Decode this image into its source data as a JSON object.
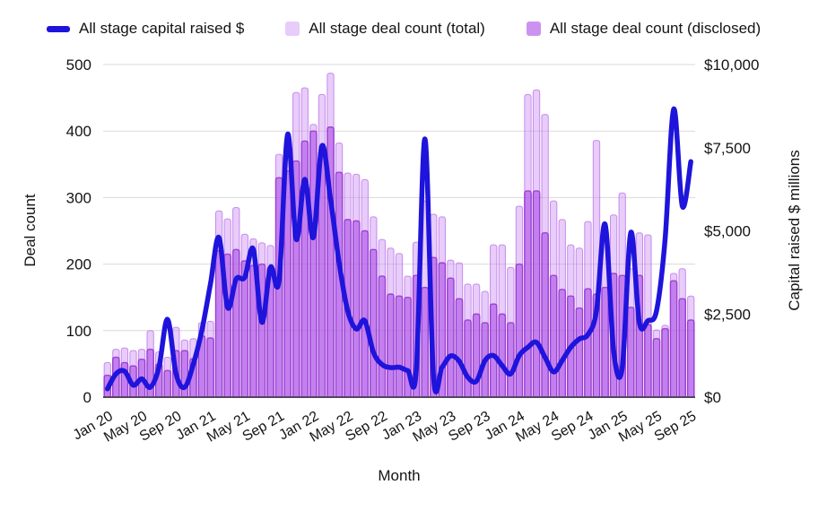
{
  "legend": [
    {
      "label": "All stage capital raised $",
      "type": "line",
      "color": "#1e14db"
    },
    {
      "label": "All stage deal count (total)",
      "type": "bar",
      "color": "#cd8df2"
    },
    {
      "label": "All stage deal count (disclosed)",
      "type": "bar",
      "color": "#ae4fe6"
    }
  ],
  "chart_data": {
    "type": "combo-bar-line",
    "title": "",
    "xlabel": "Month",
    "y_left": {
      "label": "Deal count",
      "min": 0,
      "max": 500,
      "ticks": [
        0,
        100,
        200,
        300,
        400,
        500
      ]
    },
    "y_right": {
      "label": "Capital raised $ millions",
      "min": 0,
      "max": 10000,
      "tick_labels": [
        "$0",
        "$2,500",
        "$5,000",
        "$7,500",
        "$10,000"
      ]
    },
    "x_tick_every": 4,
    "x_tick_rotation": -30,
    "grid": "horizontal",
    "legend_position": "top",
    "months": [
      "Jan 20",
      "Feb 20",
      "Mar 20",
      "Apr 20",
      "May 20",
      "Jun 20",
      "Jul 20",
      "Aug 20",
      "Sep 20",
      "Oct 20",
      "Nov 20",
      "Dec 20",
      "Jan 21",
      "Feb 21",
      "Mar 21",
      "Apr 21",
      "May 21",
      "Jun 21",
      "Jul 21",
      "Aug 21",
      "Sep 21",
      "Oct 21",
      "Nov 21",
      "Dec 21",
      "Jan 22",
      "Feb 22",
      "Mar 22",
      "Apr 22",
      "May 22",
      "Jun 22",
      "Jul 22",
      "Aug 22",
      "Sep 22",
      "Oct 22",
      "Nov 22",
      "Dec 22",
      "Jan 23",
      "Feb 23",
      "Mar 23",
      "Apr 23",
      "May 23",
      "Jun 23",
      "Jul 23",
      "Aug 23",
      "Sep 23",
      "Oct 23",
      "Nov 23",
      "Dec 23",
      "Jan 24",
      "Feb 24",
      "Mar 24",
      "Apr 24",
      "May 24",
      "Jun 24",
      "Jul 24",
      "Aug 24",
      "Sep 24",
      "Oct 24",
      "Nov 24",
      "Dec 24",
      "Jan 25",
      "Feb 25",
      "Mar 25",
      "Apr 25",
      "May 25",
      "Jun 25",
      "Jul 25",
      "Aug 25",
      "Sep 25"
    ],
    "series": [
      {
        "name": "All stage deal count (total)",
        "type": "bar",
        "axis": "left",
        "fill": "#cd8df2",
        "stroke": "#bf7bec",
        "values": [
          52,
          72,
          74,
          70,
          72,
          100,
          68,
          60,
          105,
          86,
          88,
          112,
          114,
          280,
          268,
          285,
          245,
          238,
          232,
          228,
          365,
          378,
          458,
          465,
          410,
          455,
          487,
          382,
          337,
          335,
          327,
          271,
          237,
          224,
          216,
          182,
          233,
          295,
          275,
          271,
          206,
          202,
          170,
          170,
          159,
          229,
          229,
          195,
          287,
          455,
          462,
          425,
          295,
          267,
          229,
          224,
          264,
          386,
          250,
          274,
          307,
          193,
          247,
          244,
          101,
          108,
          186,
          193,
          152
        ]
      },
      {
        "name": "All stage deal count (disclosed)",
        "type": "bar",
        "axis": "left",
        "fill": "#ae4fe6",
        "stroke": "#9233cf",
        "values": [
          33,
          60,
          52,
          47,
          57,
          72,
          50,
          40,
          70,
          70,
          58,
          92,
          89,
          220,
          215,
          222,
          205,
          198,
          200,
          195,
          330,
          340,
          355,
          385,
          400,
          370,
          406,
          338,
          267,
          265,
          250,
          222,
          182,
          155,
          152,
          150,
          183,
          165,
          210,
          202,
          179,
          148,
          116,
          125,
          112,
          140,
          125,
          112,
          200,
          310,
          310,
          247,
          183,
          162,
          152,
          134,
          163,
          155,
          165,
          186,
          183,
          135,
          183,
          109,
          88,
          103,
          175,
          148,
          116
        ]
      },
      {
        "name": "All stage capital raised $",
        "type": "line",
        "axis": "right",
        "stroke": "#1e14db",
        "values": [
          250,
          700,
          780,
          360,
          550,
          300,
          900,
          2340,
          700,
          300,
          980,
          2000,
          3400,
          4800,
          2700,
          3550,
          3600,
          4450,
          2250,
          3900,
          3500,
          7900,
          4750,
          6550,
          4800,
          7550,
          5950,
          4050,
          2600,
          2050,
          2300,
          1350,
          980,
          890,
          900,
          800,
          820,
          7760,
          620,
          900,
          1240,
          1080,
          600,
          480,
          1100,
          1250,
          950,
          700,
          1250,
          1500,
          1650,
          1200,
          760,
          1100,
          1500,
          1750,
          1880,
          2600,
          5200,
          1400,
          880,
          4950,
          2240,
          2300,
          2600,
          4750,
          8660,
          5740,
          7080
        ]
      }
    ],
    "colors": {
      "gridline": "#d9d9d9",
      "baseline": "#3d3d3d",
      "axis_text": "#141414"
    }
  }
}
